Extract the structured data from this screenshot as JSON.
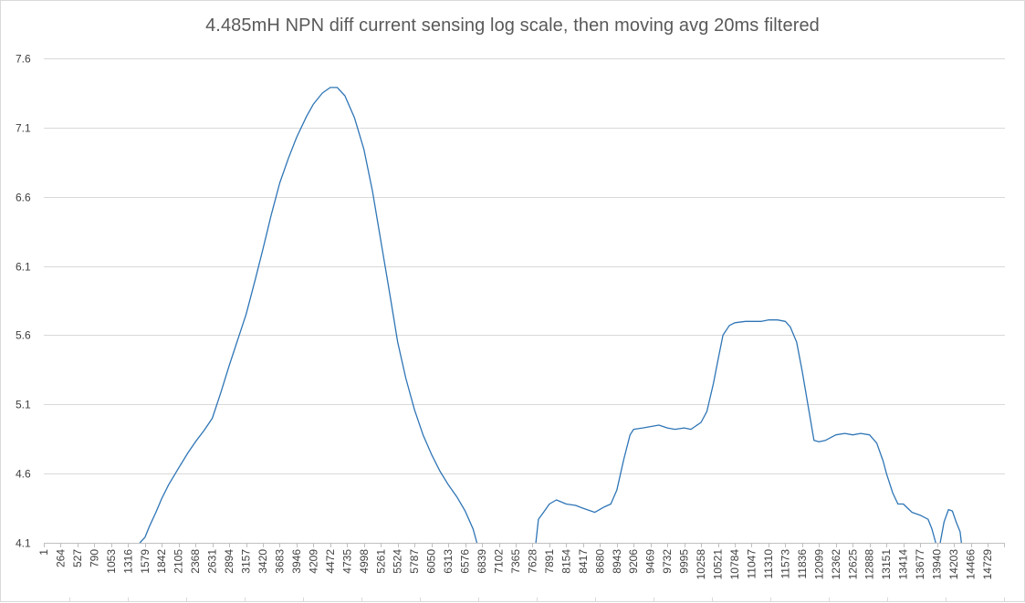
{
  "chart_data": {
    "type": "line",
    "title": "4.485mH NPN diff current sensing log scale, then moving avg 20ms filtered",
    "xlabel": "",
    "ylabel": "",
    "ylim": [
      4.1,
      7.6
    ],
    "yticks": [
      4.1,
      4.6,
      5.1,
      5.6,
      6.1,
      6.6,
      7.1,
      7.6
    ],
    "xlim": [
      1,
      15000
    ],
    "x_category_step": 263,
    "xtick_labels": [
      "1",
      "264",
      "527",
      "790",
      "1053",
      "1316",
      "1579",
      "1842",
      "2105",
      "2368",
      "2631",
      "2894",
      "3157",
      "3420",
      "3683",
      "3946",
      "4209",
      "4472",
      "4735",
      "4998",
      "5261",
      "5524",
      "5787",
      "6050",
      "6313",
      "6576",
      "6839",
      "7102",
      "7365",
      "7628",
      "7891",
      "8154",
      "8417",
      "8680",
      "8943",
      "9206",
      "9469",
      "9732",
      "9995",
      "10258",
      "10521",
      "10784",
      "11047",
      "11310",
      "11573",
      "11836",
      "12099",
      "12362",
      "12625",
      "12888",
      "13151",
      "13414",
      "13677",
      "13940",
      "14203",
      "14466",
      "14729"
    ],
    "grid": "horizontal",
    "legend": "none",
    "series_color": "#2e75b6",
    "gridline_color": "#d9d9d9",
    "series": [
      {
        "segments": [
          [
            [
              1500,
              4.1
            ],
            [
              1580,
              4.14
            ],
            [
              1650,
              4.22
            ],
            [
              1750,
              4.32
            ],
            [
              1842,
              4.42
            ],
            [
              1950,
              4.52
            ],
            [
              2105,
              4.64
            ],
            [
              2250,
              4.75
            ],
            [
              2368,
              4.83
            ],
            [
              2500,
              4.91
            ],
            [
              2631,
              5.0
            ],
            [
              2760,
              5.18
            ],
            [
              2894,
              5.38
            ],
            [
              3050,
              5.6
            ],
            [
              3157,
              5.75
            ],
            [
              3300,
              6.0
            ],
            [
              3420,
              6.22
            ],
            [
              3550,
              6.47
            ],
            [
              3683,
              6.7
            ],
            [
              3820,
              6.88
            ],
            [
              3946,
              7.03
            ],
            [
              4100,
              7.18
            ],
            [
              4209,
              7.27
            ],
            [
              4350,
              7.35
            ],
            [
              4472,
              7.39
            ],
            [
              4580,
              7.39
            ],
            [
              4700,
              7.33
            ],
            [
              4850,
              7.17
            ],
            [
              4998,
              6.94
            ],
            [
              5130,
              6.64
            ],
            [
              5261,
              6.28
            ],
            [
              5400,
              5.9
            ],
            [
              5524,
              5.55
            ],
            [
              5650,
              5.29
            ],
            [
              5787,
              5.06
            ],
            [
              5920,
              4.88
            ],
            [
              6050,
              4.74
            ],
            [
              6180,
              4.62
            ],
            [
              6313,
              4.52
            ],
            [
              6450,
              4.43
            ],
            [
              6576,
              4.33
            ],
            [
              6700,
              4.2
            ],
            [
              6760,
              4.1
            ]
          ],
          [
            [
              7680,
              4.1
            ],
            [
              7720,
              4.27
            ],
            [
              7800,
              4.32
            ],
            [
              7891,
              4.38
            ],
            [
              8000,
              4.41
            ],
            [
              8154,
              4.38
            ],
            [
              8300,
              4.37
            ],
            [
              8417,
              4.35
            ],
            [
              8600,
              4.32
            ],
            [
              8750,
              4.36
            ],
            [
              8850,
              4.38
            ],
            [
              8943,
              4.48
            ],
            [
              9050,
              4.7
            ],
            [
              9150,
              4.88
            ],
            [
              9206,
              4.92
            ],
            [
              9350,
              4.93
            ],
            [
              9469,
              4.94
            ],
            [
              9600,
              4.95
            ],
            [
              9732,
              4.93
            ],
            [
              9850,
              4.92
            ],
            [
              9995,
              4.93
            ],
            [
              10100,
              4.92
            ],
            [
              10258,
              4.97
            ],
            [
              10350,
              5.05
            ],
            [
              10450,
              5.25
            ],
            [
              10521,
              5.42
            ],
            [
              10600,
              5.6
            ],
            [
              10700,
              5.67
            ],
            [
              10784,
              5.69
            ],
            [
              10950,
              5.7
            ],
            [
              11047,
              5.7
            ],
            [
              11200,
              5.7
            ],
            [
              11310,
              5.71
            ],
            [
              11450,
              5.71
            ],
            [
              11573,
              5.7
            ],
            [
              11650,
              5.66
            ],
            [
              11750,
              5.55
            ],
            [
              11836,
              5.34
            ],
            [
              11950,
              5.03
            ],
            [
              12020,
              4.84
            ],
            [
              12099,
              4.83
            ],
            [
              12200,
              4.84
            ],
            [
              12362,
              4.88
            ],
            [
              12500,
              4.89
            ],
            [
              12625,
              4.88
            ],
            [
              12750,
              4.89
            ],
            [
              12888,
              4.88
            ],
            [
              13000,
              4.82
            ],
            [
              13100,
              4.69
            ],
            [
              13151,
              4.6
            ],
            [
              13250,
              4.46
            ],
            [
              13330,
              4.38
            ],
            [
              13414,
              4.38
            ],
            [
              13550,
              4.32
            ],
            [
              13677,
              4.3
            ],
            [
              13800,
              4.27
            ],
            [
              13860,
              4.2
            ],
            [
              13920,
              4.1
            ]
          ],
          [
            [
              13990,
              4.1
            ],
            [
              14050,
              4.25
            ],
            [
              14120,
              4.34
            ],
            [
              14180,
              4.33
            ],
            [
              14240,
              4.25
            ],
            [
              14300,
              4.18
            ],
            [
              14320,
              4.1
            ]
          ]
        ]
      }
    ]
  }
}
